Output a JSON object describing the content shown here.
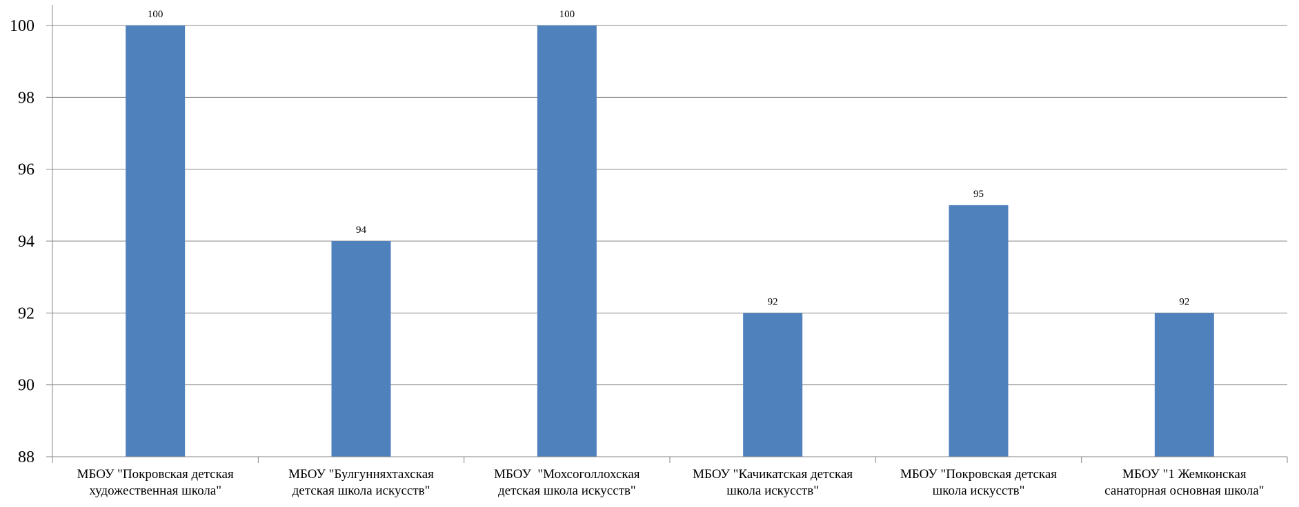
{
  "chart_data": {
    "type": "bar",
    "categories": [
      [
        "МБОУ \"Покровская детская",
        "художественная школа\""
      ],
      [
        "МБОУ \"Булгунняхтахская",
        "детская школа искусств\""
      ],
      [
        "МБОУ  \"Мохсоголлохская",
        "детская школа искусств\""
      ],
      [
        "МБОУ \"Качикатская детская",
        "школа искусств\""
      ],
      [
        "МБОУ \"Покровская детская",
        "школа искусств\""
      ],
      [
        "МБОУ \"1 Жемконская",
        "санаторная основная школа\""
      ]
    ],
    "values": [
      100,
      94,
      100,
      92,
      95,
      92
    ],
    "data_labels": [
      "100",
      "94",
      "100",
      "92",
      "95",
      "92"
    ],
    "yticks": [
      "88",
      "90",
      "92",
      "94",
      "96",
      "98",
      "100"
    ],
    "ylim": [
      88,
      100
    ],
    "title": "",
    "xlabel": "",
    "ylabel": "",
    "grid": true,
    "bar_color": "#4f81bd",
    "grid_color": "#878787",
    "axis_color": "#868686"
  }
}
